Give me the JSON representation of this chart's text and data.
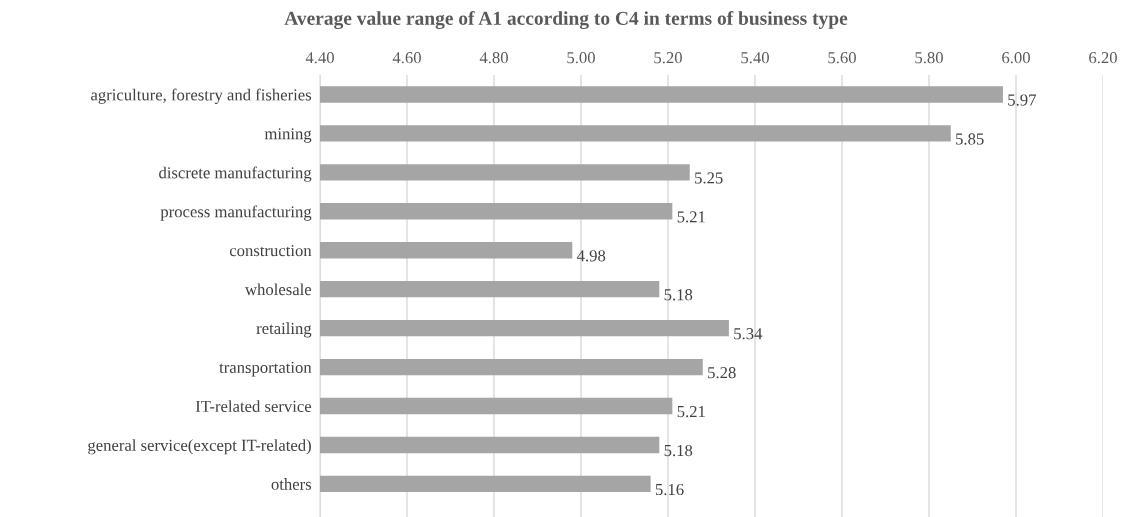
{
  "chart_data": {
    "type": "bar",
    "orientation": "horizontal",
    "title": "Average value range of A1 according to C4 in terms of business type",
    "categories": [
      "agriculture, forestry and fisheries",
      "mining",
      "discrete manufacturing",
      "process manufacturing",
      "construction",
      "wholesale",
      "retailing",
      "transportation",
      "IT-related service",
      "general service(except IT-related)",
      "others"
    ],
    "values": [
      5.97,
      5.85,
      5.25,
      5.21,
      4.98,
      5.18,
      5.34,
      5.28,
      5.21,
      5.18,
      5.16
    ],
    "color": "#a5a5a5",
    "xlim": [
      4.4,
      6.2
    ],
    "xticks": [
      {
        "value": 4.4,
        "label": "4.40"
      },
      {
        "value": 4.6,
        "label": "4.60"
      },
      {
        "value": 4.8,
        "label": "4.80"
      },
      {
        "value": 5.0,
        "label": "5.00"
      },
      {
        "value": 5.2,
        "label": "5.20"
      },
      {
        "value": 5.4,
        "label": "5.40"
      },
      {
        "value": 5.6,
        "label": "5.60"
      },
      {
        "value": 5.8,
        "label": "5.80"
      },
      {
        "value": 6.0,
        "label": "6.00"
      },
      {
        "value": 6.2,
        "label": "6.20"
      }
    ],
    "grid": "x",
    "data_labels": true,
    "legend": false
  }
}
